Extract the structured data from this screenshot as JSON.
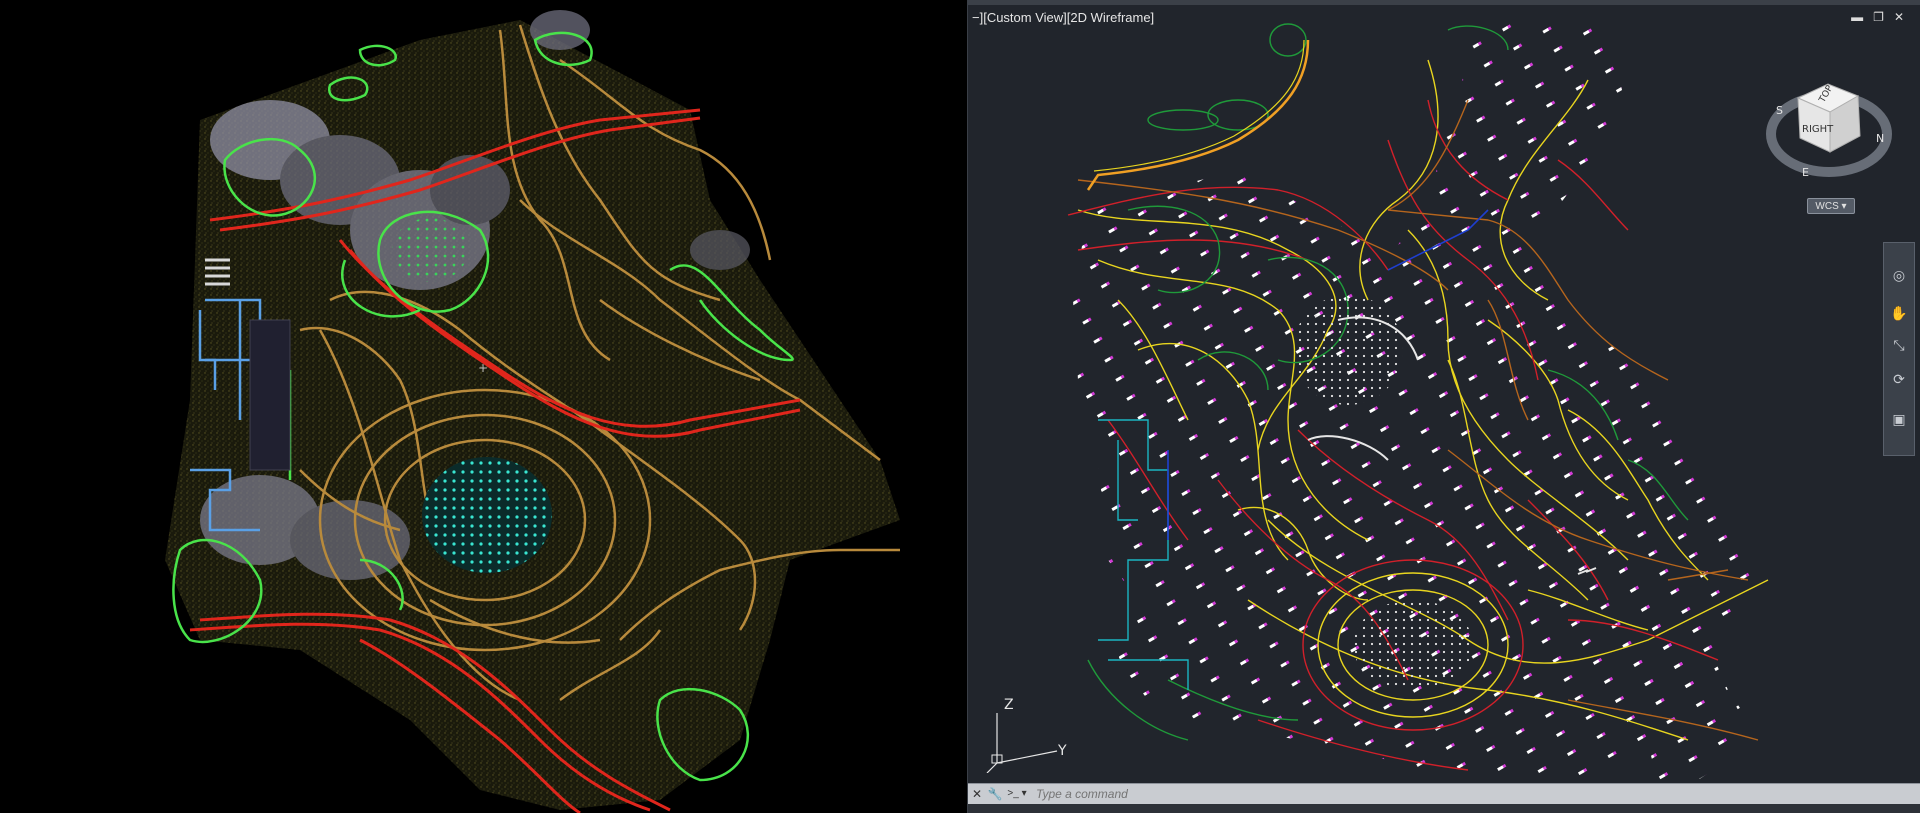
{
  "viewport": {
    "label": "−][Custom View][2D Wireframe]"
  },
  "window_controls": {
    "minimize": "▬",
    "restore": "❐",
    "close": "✕"
  },
  "viewcube": {
    "top_face": "TOP",
    "right_face": "RIGHT",
    "compass": {
      "n": "N",
      "s": "S",
      "e": "E"
    },
    "wcs_label": "WCS ▾"
  },
  "ucs": {
    "z": "Z",
    "y": "Y"
  },
  "command_line": {
    "placeholder": "Type a command",
    "close_icon": "✕",
    "settings_icon": "🔧",
    "prompt_icon": ">_ ▾"
  },
  "colors": {
    "pointcloud_bg": "#000000",
    "model_bg": "#21252c",
    "road_red": "#e0261c",
    "contour_tan": "#b88a3c",
    "green_outline": "#49e34a",
    "contour_yellow": "#e8d51f",
    "point_cyan": "#39e6d2"
  }
}
